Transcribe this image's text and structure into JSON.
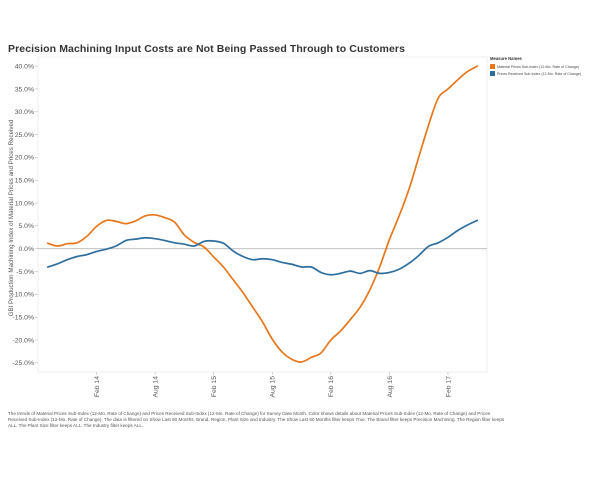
{
  "title": "Precision Machining Input Costs are Not Being Passed Through to Customers",
  "legend": {
    "title": "Measure Names",
    "items": [
      {
        "label": "Material Prices Sub-Index (12-Mo. Rate of Change)",
        "color": "#E8761C"
      },
      {
        "label": "Prices Received Sub-Index (12-Mo. Rate of Change)",
        "color": "#2E6E9E"
      }
    ]
  },
  "caption": "The trends of Material Prices Sub-Index (12-Mo. Rate of Change) and Prices Received Sub-Index (12-Mo. Rate of Change) for Survey Date Month.  Color shows details about Material Prices Sub-Index (12-Mo. Rate of Change) and Prices Received Sub-Index (12-Mo. Rate of Change). The data is filtered on Show Last 60 Months, Brand, Region, Plant Size and Industry. The Show Last 60 Months filter keeps True. The Brand filter keeps Precision Machining. The Region filter keeps ALL. The Plant Size filter keeps ALL. The Industry filter keeps ALL.",
  "chart_data": {
    "type": "line",
    "ylabel": "GBI Production Machining Index of Material Prices and Prices Received",
    "xlabel": "",
    "ylim": [
      -0.27,
      0.42
    ],
    "yticks": [
      -0.25,
      -0.2,
      -0.15,
      -0.1,
      -0.05,
      0.0,
      0.05,
      0.1,
      0.15,
      0.2,
      0.25,
      0.3,
      0.35,
      0.4
    ],
    "ytick_labels": [
      "-25.0%",
      "-20.0%",
      "-15.0%",
      "-10.0%",
      "-5.0%",
      "0.0%",
      "5.0%",
      "10.0%",
      "15.0%",
      "20.0%",
      "25.0%",
      "30.0%",
      "35.0%",
      "40.0%"
    ],
    "xticks": [
      "2014-02",
      "2014-08",
      "2015-02",
      "2015-08",
      "2016-02",
      "2016-08",
      "2017-02"
    ],
    "xtick_labels": [
      "Feb 14",
      "Aug 14",
      "Feb 15",
      "Aug 15",
      "Feb 16",
      "Aug 16",
      "Feb 17"
    ],
    "xlim": [
      "2013-08",
      "2017-06"
    ],
    "x": [
      "2013-09",
      "2013-10",
      "2013-11",
      "2013-12",
      "2014-01",
      "2014-02",
      "2014-03",
      "2014-04",
      "2014-05",
      "2014-06",
      "2014-07",
      "2014-08",
      "2014-09",
      "2014-10",
      "2014-11",
      "2014-12",
      "2015-01",
      "2015-02",
      "2015-03",
      "2015-04",
      "2015-05",
      "2015-06",
      "2015-07",
      "2015-08",
      "2015-09",
      "2015-10",
      "2015-11",
      "2015-12",
      "2016-01",
      "2016-02",
      "2016-03",
      "2016-04",
      "2016-05",
      "2016-06",
      "2016-07",
      "2016-08",
      "2016-09",
      "2016-10",
      "2016-11",
      "2016-12",
      "2017-01",
      "2017-02",
      "2017-03",
      "2017-04",
      "2017-05"
    ],
    "series": [
      {
        "name": "Material Prices Sub-Index (12-Mo. Rate of Change)",
        "color": "#E8761C",
        "values": [
          0.012,
          0.006,
          0.011,
          0.013,
          0.027,
          0.049,
          0.062,
          0.06,
          0.055,
          0.061,
          0.072,
          0.074,
          0.068,
          0.058,
          0.03,
          0.014,
          0.004,
          -0.018,
          -0.04,
          -0.068,
          -0.096,
          -0.128,
          -0.16,
          -0.198,
          -0.226,
          -0.242,
          -0.248,
          -0.238,
          -0.228,
          -0.2,
          -0.18,
          -0.155,
          -0.128,
          -0.09,
          -0.04,
          0.02,
          0.072,
          0.13,
          0.2,
          0.27,
          0.33,
          0.35,
          0.37,
          0.388,
          0.4
        ]
      },
      {
        "name": "Prices Received Sub-Index (12-Mo. Rate of Change)",
        "color": "#2E6E9E",
        "values": [
          -0.04,
          -0.033,
          -0.024,
          -0.017,
          -0.013,
          -0.006,
          -0.001,
          0.006,
          0.018,
          0.021,
          0.024,
          0.022,
          0.018,
          0.013,
          0.01,
          0.006,
          0.016,
          0.017,
          0.012,
          -0.005,
          -0.017,
          -0.024,
          -0.022,
          -0.024,
          -0.03,
          -0.034,
          -0.04,
          -0.04,
          -0.052,
          -0.057,
          -0.054,
          -0.049,
          -0.054,
          -0.048,
          -0.054,
          -0.052,
          -0.045,
          -0.032,
          -0.015,
          0.005,
          0.013,
          0.025,
          0.04,
          0.052,
          0.062
        ]
      }
    ],
    "zero_line": true,
    "grid": false,
    "legend_position": "right"
  }
}
